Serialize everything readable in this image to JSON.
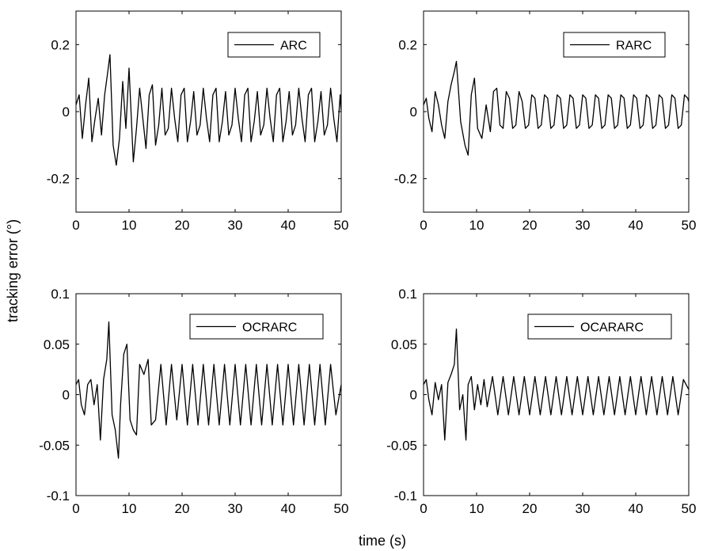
{
  "figure": {
    "xlabel": "time (s)",
    "ylabel": "tracking error (°)"
  },
  "chart_data": [
    {
      "type": "line",
      "legend": "ARC",
      "legend_position": "top-right",
      "xlim": [
        0,
        50
      ],
      "ylim": [
        -0.3,
        0.3
      ],
      "xticks": [
        0,
        10,
        20,
        30,
        40,
        50
      ],
      "yticks": [
        -0.2,
        0,
        0.2
      ],
      "ytick_labels": [
        "-0.2",
        "0",
        "0.2"
      ],
      "grid": false,
      "series": [
        {
          "name": "ARC",
          "x": [
            0,
            0.6,
            1.2,
            1.8,
            2.4,
            3.0,
            3.6,
            4.2,
            4.8,
            5.4,
            6.0,
            6.4,
            7.0,
            7.6,
            8.2,
            8.8,
            9.4,
            10.0,
            10.8,
            11.4,
            12.0,
            12.6,
            13.2,
            13.8,
            14.4,
            15.0,
            15.6,
            16.2,
            16.8,
            17.4,
            18.0,
            18.6,
            19.2,
            19.8,
            20.4,
            21.0,
            21.6,
            22.2,
            22.8,
            23.4,
            24.0,
            24.6,
            25.2,
            25.8,
            26.4,
            27.0,
            27.6,
            28.2,
            28.8,
            29.4,
            30.0,
            30.6,
            31.2,
            31.8,
            32.4,
            33.0,
            33.6,
            34.2,
            34.8,
            35.4,
            36.0,
            36.6,
            37.2,
            37.8,
            38.4,
            39.0,
            39.6,
            40.2,
            40.8,
            41.4,
            42.0,
            42.6,
            43.2,
            43.8,
            44.4,
            45.0,
            45.6,
            46.2,
            46.8,
            47.4,
            48.0,
            48.6,
            49.2,
            49.8,
            50.0
          ],
          "y": [
            0.02,
            0.05,
            -0.08,
            0.02,
            0.1,
            -0.09,
            -0.02,
            0.04,
            -0.07,
            0.05,
            0.12,
            0.17,
            -0.1,
            -0.16,
            -0.08,
            0.09,
            -0.05,
            0.13,
            -0.15,
            -0.05,
            0.07,
            -0.02,
            -0.11,
            0.05,
            0.08,
            -0.1,
            -0.04,
            0.07,
            -0.07,
            -0.05,
            0.07,
            -0.02,
            -0.09,
            0.05,
            0.07,
            -0.09,
            -0.03,
            0.06,
            -0.07,
            -0.04,
            0.07,
            -0.02,
            -0.09,
            0.05,
            0.07,
            -0.09,
            -0.03,
            0.06,
            -0.07,
            -0.04,
            0.07,
            -0.02,
            -0.09,
            0.05,
            0.07,
            -0.09,
            -0.03,
            0.06,
            -0.07,
            -0.04,
            0.07,
            -0.02,
            -0.09,
            0.05,
            0.07,
            -0.09,
            -0.03,
            0.06,
            -0.07,
            -0.04,
            0.07,
            -0.02,
            -0.09,
            0.05,
            0.07,
            -0.09,
            -0.03,
            0.06,
            -0.07,
            -0.04,
            0.07,
            -0.02,
            -0.09,
            0.05,
            0.0
          ]
        }
      ]
    },
    {
      "type": "line",
      "legend": "RARC",
      "legend_position": "top-right",
      "xlim": [
        0,
        50
      ],
      "ylim": [
        -0.3,
        0.3
      ],
      "xticks": [
        0,
        10,
        20,
        30,
        40,
        50
      ],
      "yticks": [
        -0.2,
        0,
        0.2
      ],
      "ytick_labels": [
        "-0.2",
        "0",
        "0.2"
      ],
      "grid": false,
      "series": [
        {
          "name": "RARC",
          "x": [
            0,
            0.5,
            1.0,
            1.6,
            2.2,
            2.8,
            3.4,
            4.0,
            4.6,
            5.2,
            5.8,
            6.2,
            7.0,
            7.8,
            8.4,
            9.0,
            9.6,
            10.2,
            11.0,
            11.8,
            12.6,
            13.2,
            13.8,
            14.4,
            15.0,
            15.6,
            16.2,
            16.8,
            17.4,
            18.0,
            18.6,
            19.2,
            19.8,
            20.4,
            21.0,
            21.6,
            22.2,
            22.8,
            23.4,
            24.0,
            24.6,
            25.2,
            25.8,
            26.4,
            27.0,
            27.6,
            28.2,
            28.8,
            29.4,
            30.0,
            30.6,
            31.2,
            31.8,
            32.4,
            33.0,
            33.6,
            34.2,
            34.8,
            35.4,
            36.0,
            36.6,
            37.2,
            37.8,
            38.4,
            39.0,
            39.6,
            40.2,
            40.8,
            41.4,
            42.0,
            42.6,
            43.2,
            43.8,
            44.4,
            45.0,
            45.6,
            46.2,
            46.8,
            47.4,
            48.0,
            48.6,
            49.2,
            49.8,
            50.0
          ],
          "y": [
            0.02,
            0.04,
            -0.02,
            -0.06,
            0.06,
            0.02,
            -0.04,
            -0.08,
            0.03,
            0.08,
            0.12,
            0.15,
            -0.03,
            -0.1,
            -0.13,
            0.05,
            0.1,
            -0.05,
            -0.08,
            0.02,
            -0.06,
            0.06,
            0.07,
            -0.04,
            -0.05,
            0.06,
            0.04,
            -0.05,
            -0.04,
            0.06,
            0.03,
            -0.05,
            -0.04,
            0.05,
            0.04,
            -0.05,
            -0.04,
            0.05,
            0.04,
            -0.05,
            -0.04,
            0.05,
            0.04,
            -0.05,
            -0.04,
            0.05,
            0.04,
            -0.05,
            -0.04,
            0.05,
            0.04,
            -0.05,
            -0.04,
            0.05,
            0.04,
            -0.05,
            -0.04,
            0.05,
            0.04,
            -0.05,
            -0.04,
            0.05,
            0.04,
            -0.05,
            -0.04,
            0.05,
            0.04,
            -0.05,
            -0.04,
            0.05,
            0.04,
            -0.05,
            -0.04,
            0.05,
            0.04,
            -0.05,
            -0.04,
            0.05,
            0.04,
            -0.05,
            -0.04,
            0.05,
            0.04,
            0.03
          ]
        }
      ]
    },
    {
      "type": "line",
      "legend": "OCRARC",
      "legend_position": "top-right",
      "xlim": [
        0,
        50
      ],
      "ylim": [
        -0.1,
        0.1
      ],
      "xticks": [
        0,
        10,
        20,
        30,
        40,
        50
      ],
      "yticks": [
        -0.1,
        -0.05,
        0,
        0.05,
        0.1
      ],
      "ytick_labels": [
        "-0.1",
        "-0.05",
        "0",
        "0.05",
        "0.1"
      ],
      "grid": false,
      "series": [
        {
          "name": "OCRARC",
          "x": [
            0,
            0.5,
            1.0,
            1.6,
            2.2,
            2.8,
            3.4,
            4.0,
            4.6,
            5.2,
            5.8,
            6.2,
            6.8,
            7.4,
            8.0,
            8.4,
            9.0,
            9.6,
            10.2,
            10.8,
            11.4,
            12.0,
            12.8,
            13.6,
            14.2,
            15.0,
            16.0,
            17.0,
            18.0,
            19.0,
            20.0,
            21.0,
            22.0,
            23.0,
            24.0,
            25.0,
            26.0,
            27.0,
            28.0,
            29.0,
            30.0,
            31.0,
            32.0,
            33.0,
            34.0,
            35.0,
            36.0,
            37.0,
            38.0,
            39.0,
            40.0,
            41.0,
            42.0,
            43.0,
            44.0,
            45.0,
            46.0,
            47.0,
            48.0,
            49.0,
            50.0
          ],
          "y": [
            0.01,
            0.015,
            -0.01,
            -0.02,
            0.01,
            0.015,
            -0.01,
            0.01,
            -0.045,
            0.015,
            0.035,
            0.072,
            -0.02,
            -0.035,
            -0.063,
            -0.01,
            0.04,
            0.05,
            -0.025,
            -0.035,
            -0.04,
            0.03,
            0.02,
            0.035,
            -0.03,
            -0.025,
            0.03,
            -0.03,
            0.03,
            -0.025,
            0.03,
            -0.03,
            0.03,
            -0.03,
            0.03,
            -0.03,
            0.03,
            -0.03,
            0.03,
            -0.03,
            0.03,
            -0.03,
            0.03,
            -0.03,
            0.03,
            -0.03,
            0.03,
            -0.03,
            0.03,
            -0.03,
            0.03,
            -0.03,
            0.03,
            -0.03,
            0.03,
            -0.03,
            0.03,
            -0.03,
            0.03,
            -0.02,
            0.01
          ]
        }
      ]
    },
    {
      "type": "line",
      "legend": "OCARARC",
      "legend_position": "top-right",
      "xlim": [
        0,
        50
      ],
      "ylim": [
        -0.1,
        0.1
      ],
      "xticks": [
        0,
        10,
        20,
        30,
        40,
        50
      ],
      "yticks": [
        -0.1,
        -0.05,
        0,
        0.05,
        0.1
      ],
      "ytick_labels": [
        "-0.1",
        "-0.05",
        "0",
        "0.05",
        "0.1"
      ],
      "grid": false,
      "series": [
        {
          "name": "OCARARC",
          "x": [
            0,
            0.5,
            1.0,
            1.6,
            2.2,
            2.8,
            3.4,
            4.0,
            4.6,
            5.2,
            5.8,
            6.2,
            6.8,
            7.4,
            8.0,
            8.4,
            9.0,
            9.6,
            10.2,
            10.8,
            11.4,
            12.0,
            13.0,
            14.0,
            15.0,
            16.0,
            17.0,
            18.0,
            19.0,
            20.0,
            21.0,
            22.0,
            23.0,
            24.0,
            25.0,
            26.0,
            27.0,
            28.0,
            29.0,
            30.0,
            31.0,
            32.0,
            33.0,
            34.0,
            35.0,
            36.0,
            37.0,
            38.0,
            39.0,
            40.0,
            41.0,
            42.0,
            43.0,
            44.0,
            45.0,
            46.0,
            47.0,
            48.0,
            49.0,
            50.0
          ],
          "y": [
            0.01,
            0.015,
            -0.005,
            -0.02,
            0.012,
            -0.005,
            0.01,
            -0.045,
            0.012,
            0.02,
            0.03,
            0.065,
            -0.015,
            0.0,
            -0.045,
            0.01,
            0.018,
            -0.015,
            0.01,
            -0.01,
            0.015,
            -0.012,
            0.018,
            -0.02,
            0.018,
            -0.02,
            0.018,
            -0.02,
            0.018,
            -0.02,
            0.018,
            -0.02,
            0.018,
            -0.02,
            0.018,
            -0.02,
            0.018,
            -0.02,
            0.018,
            -0.02,
            0.018,
            -0.02,
            0.018,
            -0.02,
            0.018,
            -0.02,
            0.018,
            -0.02,
            0.018,
            -0.02,
            0.018,
            -0.02,
            0.018,
            -0.02,
            0.018,
            -0.02,
            0.018,
            -0.02,
            0.015,
            0.005
          ]
        }
      ]
    }
  ]
}
